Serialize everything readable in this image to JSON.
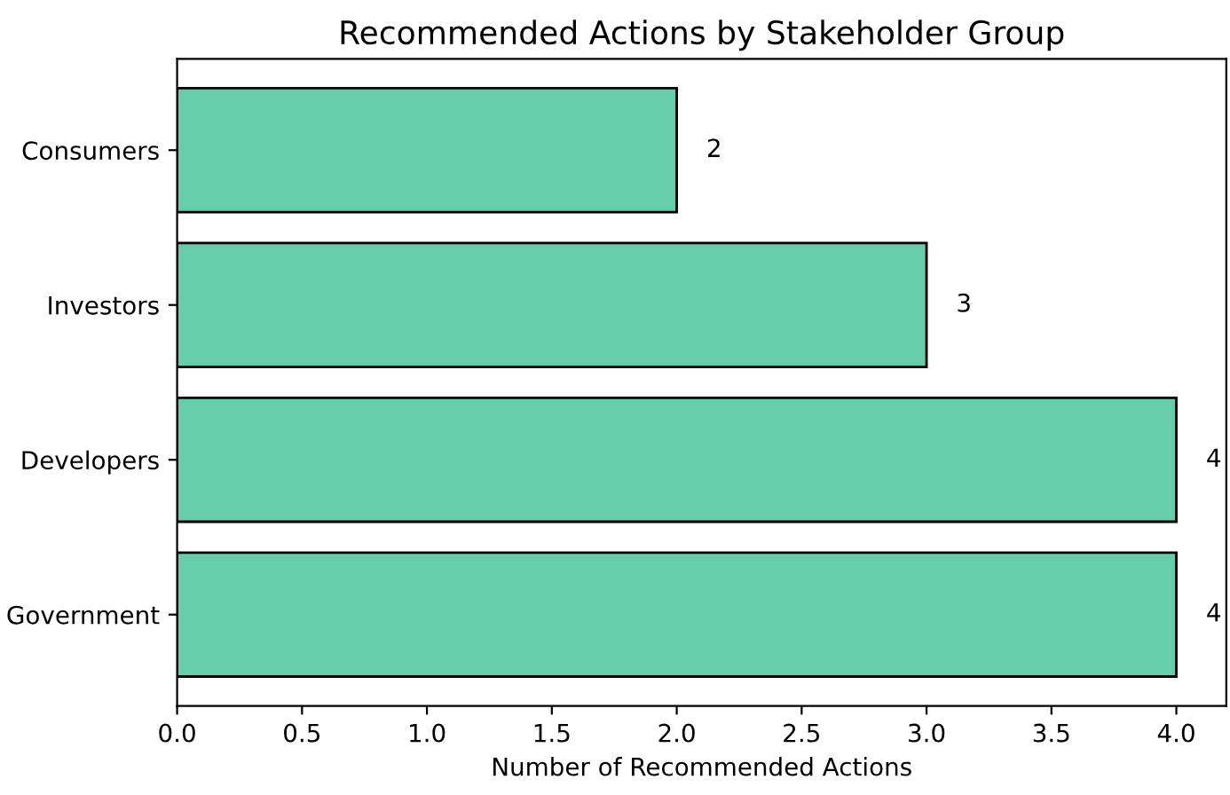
{
  "chart_data": {
    "type": "bar",
    "orientation": "horizontal",
    "title": "Recommended Actions by Stakeholder Group",
    "xlabel": "Number of Recommended Actions",
    "categories": [
      "Consumers",
      "Investors",
      "Developers",
      "Government"
    ],
    "values": [
      2,
      3,
      4,
      4
    ],
    "color": "#66cdaa",
    "data_labels": true,
    "xlim": [
      0,
      4.2
    ],
    "xticks": [
      {
        "value": 0,
        "label": "0.0"
      },
      0.5,
      {
        "value": 1,
        "label": "1.0"
      },
      1.5,
      {
        "value": 2,
        "label": "2.0"
      },
      2.5,
      {
        "value": 3,
        "label": "3.0"
      },
      3.5,
      {
        "value": 4,
        "label": "4.0"
      }
    ],
    "grid": false
  }
}
